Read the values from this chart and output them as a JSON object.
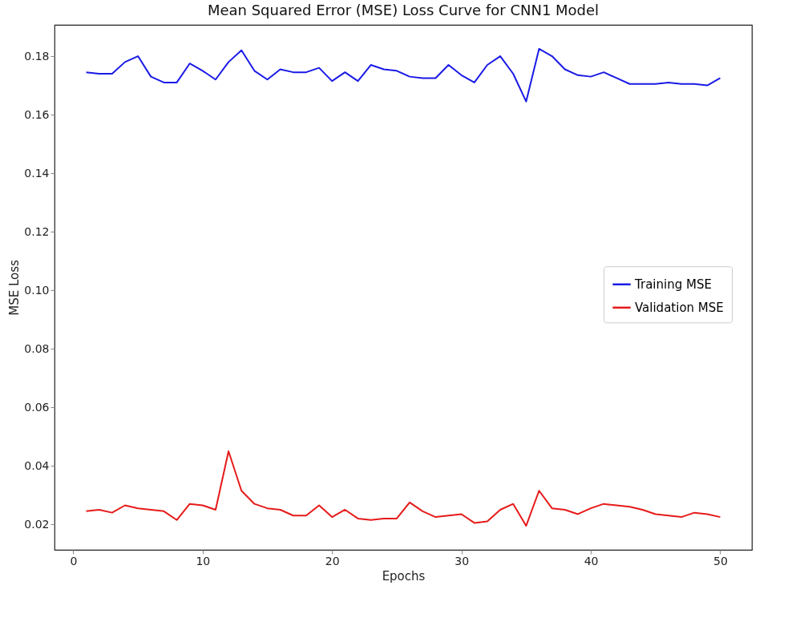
{
  "chart_data": {
    "type": "line",
    "title": "Mean Squared Error (MSE) Loss Curve for CNN1 Model",
    "xlabel": "Epochs",
    "ylabel": "MSE Loss",
    "x": [
      1,
      2,
      3,
      4,
      5,
      6,
      7,
      8,
      9,
      10,
      11,
      12,
      13,
      14,
      15,
      16,
      17,
      18,
      19,
      20,
      21,
      22,
      23,
      24,
      25,
      26,
      27,
      28,
      29,
      30,
      31,
      32,
      33,
      34,
      35,
      36,
      37,
      38,
      39,
      40,
      41,
      42,
      43,
      44,
      45,
      46,
      47,
      48,
      49,
      50
    ],
    "series": [
      {
        "name": "Training MSE",
        "color": "#1a1ae6",
        "values": [
          0.1745,
          0.174,
          0.174,
          0.178,
          0.18,
          0.173,
          0.171,
          0.171,
          0.1775,
          0.175,
          0.172,
          0.178,
          0.182,
          0.175,
          0.172,
          0.1755,
          0.1745,
          0.1745,
          0.176,
          0.1715,
          0.1745,
          0.1715,
          0.177,
          0.1755,
          0.175,
          0.173,
          0.1725,
          0.1725,
          0.177,
          0.1735,
          0.171,
          0.177,
          0.18,
          0.174,
          0.1645,
          0.1825,
          0.18,
          0.1755,
          0.1735,
          0.173,
          0.1745,
          0.1725,
          0.1705,
          0.1705,
          0.1705,
          0.171,
          0.1705,
          0.1705,
          0.17,
          0.1725
        ]
      },
      {
        "name": "Validation MSE",
        "color": "#e61a1a",
        "values": [
          0.0245,
          0.025,
          0.024,
          0.0265,
          0.0255,
          0.025,
          0.0245,
          0.0215,
          0.027,
          0.0265,
          0.025,
          0.045,
          0.0315,
          0.027,
          0.0255,
          0.025,
          0.023,
          0.023,
          0.0265,
          0.0225,
          0.025,
          0.022,
          0.0215,
          0.022,
          0.022,
          0.0275,
          0.0245,
          0.0225,
          0.023,
          0.0235,
          0.0205,
          0.021,
          0.025,
          0.027,
          0.0195,
          0.0315,
          0.0255,
          0.025,
          0.0235,
          0.0255,
          0.027,
          0.0265,
          0.026,
          0.025,
          0.0235,
          0.023,
          0.0225,
          0.024,
          0.0235,
          0.0225
        ]
      }
    ],
    "xlim": [
      -1.45,
      52.45
    ],
    "xticks": [
      0,
      10,
      20,
      30,
      40,
      50
    ],
    "ylim": [
      0.0113,
      0.1907
    ],
    "yticks": [
      0.02,
      0.04,
      0.06,
      0.08,
      {
        "value": 0.1,
        "label": "0.10"
      },
      0.12,
      0.14,
      0.16,
      0.18
    ],
    "legend": "right"
  }
}
